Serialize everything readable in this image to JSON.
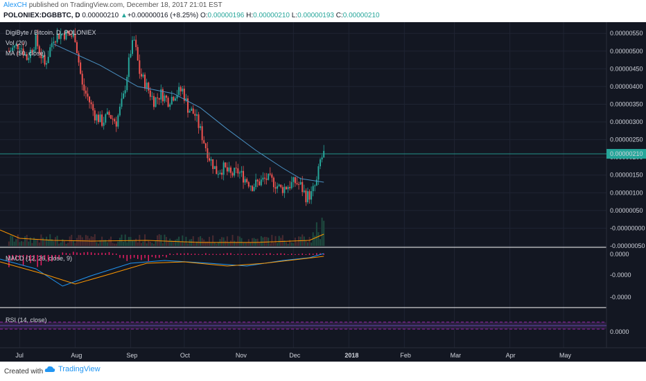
{
  "header": {
    "author": "AlexCH",
    "published": "published on TradingView.com, December 18, 2017 21:01 EST",
    "symbol": "POLONIEX:DGBBTC, D",
    "price": "0.00000210",
    "change_arrow": "▲",
    "change": "+0.00000016 (+8.25%)",
    "o_label": "O:",
    "o_value": "0.00000196",
    "h_label": "H:",
    "h_value": "0.00000210",
    "l_label": "L:",
    "l_value": "0.00000193",
    "c_label": "C:",
    "c_value": "0.00000210"
  },
  "legend": {
    "title": "DigiByte / Bitcoin, D, POLONIEX",
    "vol": "Vol (20)",
    "ma": "MA (50, close)",
    "macd": "MACD (12, 26, close, 9)",
    "rsi": "RSI (14, close)"
  },
  "price_axis_labels": [
    "0.00000550",
    "0.00000500",
    "0.00000450",
    "0.00000400",
    "0.00000350",
    "0.00000300",
    "0.00000250",
    "0.00000200",
    "0.00000150",
    "0.00000100",
    "0.00000050",
    "-0.00000000",
    "-0.00000050"
  ],
  "current_price_label": "0.00000210",
  "macd_axis_labels": [
    "0.0000",
    "-0.0000",
    "-0.0000"
  ],
  "rsi_axis_labels": [
    "0.0000"
  ],
  "time_axis_labels": [
    "Jul",
    "Aug",
    "Sep",
    "Oct",
    "Nov",
    "Dec",
    "2018",
    "Feb",
    "Mar",
    "Apr",
    "May"
  ],
  "footer": {
    "created_with": "Created with",
    "brand": "TradingView"
  },
  "colors": {
    "up": "#26a69a",
    "down": "#ef5350",
    "ma": "#4a90c2",
    "vol_ma": "#ff9800",
    "macd": "#2196f3",
    "signal": "#ff9800",
    "hist": "#e91e63",
    "rsi_band": "#9c27b0",
    "bg": "#131722"
  },
  "chart_data": {
    "type": "candlestick",
    "title": "DigiByte / Bitcoin, D, POLONIEX",
    "y_range": [
      -5e-07,
      5.7e-06
    ],
    "x_range": [
      "2017-06-20",
      "2018-05-25"
    ],
    "x_ticks": [
      "Jul",
      "Aug",
      "Sep",
      "Oct",
      "Nov",
      "Dec",
      "2018",
      "Feb",
      "Mar",
      "Apr",
      "May"
    ],
    "current_price": 2.1e-06,
    "close_approx": [
      [
        "2017-06-25",
        5.0
      ],
      [
        "2017-07-01",
        5.2
      ],
      [
        "2017-07-05",
        4.8
      ],
      [
        "2017-07-10",
        5.3
      ],
      [
        "2017-07-15",
        4.6
      ],
      [
        "2017-07-20",
        5.4
      ],
      [
        "2017-07-25",
        5.5
      ],
      [
        "2017-08-01",
        5.4
      ],
      [
        "2017-08-05",
        4.0
      ],
      [
        "2017-08-08",
        3.7
      ],
      [
        "2017-08-12",
        3.2
      ],
      [
        "2017-08-16",
        3.0
      ],
      [
        "2017-08-20",
        3.2
      ],
      [
        "2017-08-24",
        3.0
      ],
      [
        "2017-08-28",
        3.7
      ],
      [
        "2017-09-01",
        5.0
      ],
      [
        "2017-09-03",
        5.3
      ],
      [
        "2017-09-06",
        4.4
      ],
      [
        "2017-09-10",
        4.0
      ],
      [
        "2017-09-14",
        3.6
      ],
      [
        "2017-09-18",
        3.8
      ],
      [
        "2017-09-22",
        3.6
      ],
      [
        "2017-09-26",
        3.8
      ],
      [
        "2017-09-30",
        3.9
      ],
      [
        "2017-10-03",
        3.4
      ],
      [
        "2017-10-07",
        3.2
      ],
      [
        "2017-10-11",
        2.6
      ],
      [
        "2017-10-15",
        2.0
      ],
      [
        "2017-10-19",
        1.6
      ],
      [
        "2017-10-23",
        1.7
      ],
      [
        "2017-10-27",
        1.5
      ],
      [
        "2017-10-31",
        1.6
      ],
      [
        "2017-11-04",
        1.4
      ],
      [
        "2017-11-08",
        1.2
      ],
      [
        "2017-11-12",
        1.3
      ],
      [
        "2017-11-16",
        1.4
      ],
      [
        "2017-11-20",
        1.3
      ],
      [
        "2017-11-24",
        1.1
      ],
      [
        "2017-11-28",
        1.2
      ],
      [
        "2017-12-02",
        1.3
      ],
      [
        "2017-12-05",
        1.2
      ],
      [
        "2017-12-08",
        0.9
      ],
      [
        "2017-12-11",
        0.95
      ],
      [
        "2017-12-14",
        1.3
      ],
      [
        "2017-12-16",
        1.9
      ],
      [
        "2017-12-18",
        2.1
      ]
    ],
    "ma_approx": [
      [
        "2017-07-20",
        5.2
      ],
      [
        "2017-08-15",
        4.6
      ],
      [
        "2017-09-05",
        4.0
      ],
      [
        "2017-09-25",
        3.8
      ],
      [
        "2017-10-10",
        3.4
      ],
      [
        "2017-10-25",
        2.8
      ],
      [
        "2017-11-10",
        2.2
      ],
      [
        "2017-11-25",
        1.7
      ],
      [
        "2017-12-05",
        1.4
      ],
      [
        "2017-12-18",
        1.3
      ]
    ]
  }
}
